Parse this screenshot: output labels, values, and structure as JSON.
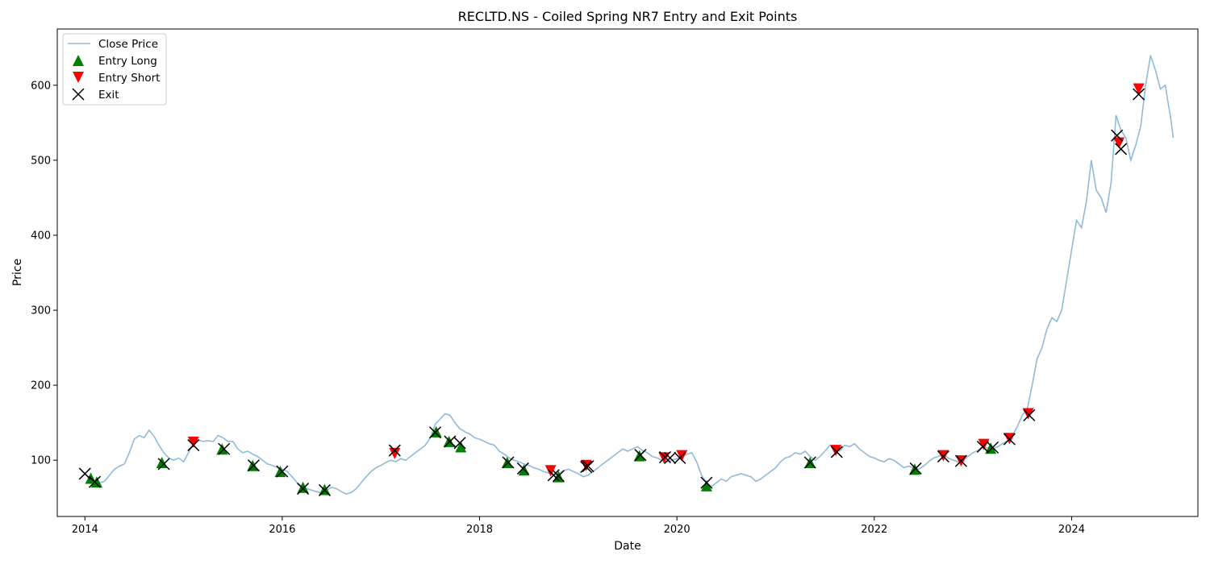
{
  "chart_data": {
    "type": "line",
    "title": "RECLTD.NS - Coiled Spring NR7 Entry and Exit Points",
    "xlabel": "Date",
    "ylabel": "Price",
    "xlim": [
      2013.72,
      2025.28
    ],
    "ylim": [
      25,
      675
    ],
    "x_ticks": [
      2014,
      2016,
      2018,
      2020,
      2022,
      2024
    ],
    "x_tick_labels": [
      "2014",
      "2016",
      "2018",
      "2020",
      "2022",
      "2024"
    ],
    "y_ticks": [
      100,
      200,
      300,
      400,
      500,
      600
    ],
    "y_tick_labels": [
      "100",
      "200",
      "300",
      "400",
      "500",
      "600"
    ],
    "grid": false,
    "legend_position": "top-left",
    "colors": {
      "close": "#1f77b4",
      "entry_long": "#008000",
      "entry_short": "#ff0000",
      "exit": "#000000"
    },
    "series": [
      {
        "name": "Close Price",
        "marker": "line",
        "points": [
          [
            2014.0,
            82
          ],
          [
            2014.05,
            76
          ],
          [
            2014.1,
            72
          ],
          [
            2014.15,
            70
          ],
          [
            2014.2,
            72
          ],
          [
            2014.25,
            80
          ],
          [
            2014.3,
            88
          ],
          [
            2014.35,
            92
          ],
          [
            2014.4,
            95
          ],
          [
            2014.45,
            110
          ],
          [
            2014.5,
            128
          ],
          [
            2014.55,
            133
          ],
          [
            2014.6,
            130
          ],
          [
            2014.65,
            140
          ],
          [
            2014.7,
            132
          ],
          [
            2014.75,
            120
          ],
          [
            2014.8,
            110
          ],
          [
            2014.85,
            103
          ],
          [
            2014.9,
            100
          ],
          [
            2014.95,
            103
          ],
          [
            2015.0,
            98
          ],
          [
            2015.05,
            110
          ],
          [
            2015.1,
            122
          ],
          [
            2015.15,
            127
          ],
          [
            2015.2,
            125
          ],
          [
            2015.25,
            126
          ],
          [
            2015.3,
            125
          ],
          [
            2015.35,
            133
          ],
          [
            2015.4,
            130
          ],
          [
            2015.45,
            125
          ],
          [
            2015.5,
            125
          ],
          [
            2015.55,
            115
          ],
          [
            2015.6,
            110
          ],
          [
            2015.65,
            112
          ],
          [
            2015.7,
            108
          ],
          [
            2015.75,
            105
          ],
          [
            2015.8,
            100
          ],
          [
            2015.85,
            95
          ],
          [
            2015.9,
            93
          ],
          [
            2015.95,
            90
          ],
          [
            2016.0,
            88
          ],
          [
            2016.05,
            85
          ],
          [
            2016.1,
            78
          ],
          [
            2016.15,
            70
          ],
          [
            2016.2,
            65
          ],
          [
            2016.25,
            62
          ],
          [
            2016.3,
            60
          ],
          [
            2016.35,
            58
          ],
          [
            2016.4,
            56
          ],
          [
            2016.45,
            60
          ],
          [
            2016.5,
            64
          ],
          [
            2016.55,
            62
          ],
          [
            2016.6,
            58
          ],
          [
            2016.65,
            55
          ],
          [
            2016.7,
            57
          ],
          [
            2016.75,
            62
          ],
          [
            2016.8,
            70
          ],
          [
            2016.85,
            78
          ],
          [
            2016.9,
            85
          ],
          [
            2016.95,
            90
          ],
          [
            2017.0,
            93
          ],
          [
            2017.05,
            97
          ],
          [
            2017.1,
            100
          ],
          [
            2017.15,
            98
          ],
          [
            2017.2,
            102
          ],
          [
            2017.25,
            100
          ],
          [
            2017.3,
            105
          ],
          [
            2017.35,
            110
          ],
          [
            2017.4,
            115
          ],
          [
            2017.45,
            120
          ],
          [
            2017.5,
            130
          ],
          [
            2017.55,
            148
          ],
          [
            2017.6,
            155
          ],
          [
            2017.65,
            162
          ],
          [
            2017.7,
            160
          ],
          [
            2017.75,
            150
          ],
          [
            2017.8,
            142
          ],
          [
            2017.85,
            138
          ],
          [
            2017.9,
            135
          ],
          [
            2017.95,
            130
          ],
          [
            2018.0,
            128
          ],
          [
            2018.05,
            125
          ],
          [
            2018.1,
            122
          ],
          [
            2018.15,
            120
          ],
          [
            2018.2,
            112
          ],
          [
            2018.25,
            108
          ],
          [
            2018.3,
            103
          ],
          [
            2018.35,
            100
          ],
          [
            2018.4,
            98
          ],
          [
            2018.45,
            95
          ],
          [
            2018.5,
            93
          ],
          [
            2018.55,
            90
          ],
          [
            2018.6,
            88
          ],
          [
            2018.65,
            85
          ],
          [
            2018.7,
            83
          ],
          [
            2018.75,
            80
          ],
          [
            2018.8,
            82
          ],
          [
            2018.85,
            86
          ],
          [
            2018.9,
            88
          ],
          [
            2018.95,
            85
          ],
          [
            2019.0,
            82
          ],
          [
            2019.05,
            78
          ],
          [
            2019.1,
            80
          ],
          [
            2019.15,
            85
          ],
          [
            2019.2,
            90
          ],
          [
            2019.25,
            95
          ],
          [
            2019.3,
            100
          ],
          [
            2019.35,
            105
          ],
          [
            2019.4,
            110
          ],
          [
            2019.45,
            115
          ],
          [
            2019.5,
            112
          ],
          [
            2019.55,
            115
          ],
          [
            2019.6,
            118
          ],
          [
            2019.65,
            113
          ],
          [
            2019.7,
            110
          ],
          [
            2019.75,
            105
          ],
          [
            2019.8,
            103
          ],
          [
            2019.85,
            100
          ],
          [
            2019.9,
            98
          ],
          [
            2019.95,
            100
          ],
          [
            2020.0,
            102
          ],
          [
            2020.05,
            105
          ],
          [
            2020.1,
            108
          ],
          [
            2020.15,
            110
          ],
          [
            2020.2,
            98
          ],
          [
            2020.25,
            80
          ],
          [
            2020.3,
            70
          ],
          [
            2020.35,
            65
          ],
          [
            2020.4,
            70
          ],
          [
            2020.45,
            75
          ],
          [
            2020.5,
            72
          ],
          [
            2020.55,
            78
          ],
          [
            2020.6,
            80
          ],
          [
            2020.65,
            82
          ],
          [
            2020.7,
            80
          ],
          [
            2020.75,
            78
          ],
          [
            2020.8,
            72
          ],
          [
            2020.85,
            75
          ],
          [
            2020.9,
            80
          ],
          [
            2020.95,
            85
          ],
          [
            2021.0,
            90
          ],
          [
            2021.05,
            98
          ],
          [
            2021.1,
            103
          ],
          [
            2021.15,
            105
          ],
          [
            2021.2,
            110
          ],
          [
            2021.25,
            108
          ],
          [
            2021.3,
            112
          ],
          [
            2021.35,
            105
          ],
          [
            2021.4,
            100
          ],
          [
            2021.45,
            105
          ],
          [
            2021.5,
            112
          ],
          [
            2021.55,
            120
          ],
          [
            2021.6,
            118
          ],
          [
            2021.65,
            112
          ],
          [
            2021.7,
            120
          ],
          [
            2021.75,
            118
          ],
          [
            2021.8,
            122
          ],
          [
            2021.85,
            115
          ],
          [
            2021.9,
            110
          ],
          [
            2021.95,
            105
          ],
          [
            2022.0,
            103
          ],
          [
            2022.05,
            100
          ],
          [
            2022.1,
            98
          ],
          [
            2022.15,
            102
          ],
          [
            2022.2,
            100
          ],
          [
            2022.25,
            95
          ],
          [
            2022.3,
            90
          ],
          [
            2022.35,
            92
          ],
          [
            2022.4,
            90
          ],
          [
            2022.45,
            88
          ],
          [
            2022.5,
            92
          ],
          [
            2022.55,
            98
          ],
          [
            2022.6,
            103
          ],
          [
            2022.65,
            105
          ],
          [
            2022.7,
            108
          ],
          [
            2022.75,
            103
          ],
          [
            2022.8,
            100
          ],
          [
            2022.85,
            98
          ],
          [
            2022.9,
            100
          ],
          [
            2022.95,
            105
          ],
          [
            2023.0,
            110
          ],
          [
            2023.05,
            113
          ],
          [
            2023.1,
            118
          ],
          [
            2023.15,
            116
          ],
          [
            2023.2,
            115
          ],
          [
            2023.25,
            118
          ],
          [
            2023.3,
            122
          ],
          [
            2023.35,
            126
          ],
          [
            2023.4,
            132
          ],
          [
            2023.45,
            145
          ],
          [
            2023.5,
            160
          ],
          [
            2023.55,
            168
          ],
          [
            2023.6,
            200
          ],
          [
            2023.65,
            235
          ],
          [
            2023.7,
            250
          ],
          [
            2023.75,
            275
          ],
          [
            2023.8,
            290
          ],
          [
            2023.85,
            285
          ],
          [
            2023.9,
            300
          ],
          [
            2023.95,
            340
          ],
          [
            2024.0,
            380
          ],
          [
            2024.05,
            420
          ],
          [
            2024.1,
            410
          ],
          [
            2024.15,
            445
          ],
          [
            2024.2,
            500
          ],
          [
            2024.25,
            460
          ],
          [
            2024.3,
            450
          ],
          [
            2024.35,
            430
          ],
          [
            2024.4,
            470
          ],
          [
            2024.45,
            560
          ],
          [
            2024.5,
            540
          ],
          [
            2024.55,
            530
          ],
          [
            2024.6,
            500
          ],
          [
            2024.65,
            520
          ],
          [
            2024.7,
            545
          ],
          [
            2024.75,
            600
          ],
          [
            2024.8,
            640
          ],
          [
            2024.85,
            620
          ],
          [
            2024.9,
            595
          ],
          [
            2024.95,
            600
          ],
          [
            2024.98,
            575
          ],
          [
            2025.0,
            560
          ],
          [
            2025.03,
            530
          ]
        ]
      },
      {
        "name": "Entry Long",
        "marker": "triangle-up",
        "points": [
          [
            2014.06,
            76
          ],
          [
            2014.12,
            71
          ],
          [
            2014.78,
            97
          ],
          [
            2015.39,
            115
          ],
          [
            2015.7,
            93
          ],
          [
            2015.98,
            85
          ],
          [
            2016.21,
            64
          ],
          [
            2016.43,
            61
          ],
          [
            2017.56,
            138
          ],
          [
            2017.69,
            125
          ],
          [
            2017.81,
            118
          ],
          [
            2018.28,
            97
          ],
          [
            2018.45,
            87
          ],
          [
            2018.8,
            78
          ],
          [
            2019.62,
            106
          ],
          [
            2020.3,
            66
          ],
          [
            2021.35,
            97
          ],
          [
            2022.41,
            88
          ],
          [
            2023.18,
            116
          ]
        ]
      },
      {
        "name": "Entry Short",
        "marker": "triangle-down",
        "points": [
          [
            2015.1,
            124
          ],
          [
            2017.14,
            109
          ],
          [
            2018.72,
            86
          ],
          [
            2019.08,
            93
          ],
          [
            2019.87,
            103
          ],
          [
            2020.05,
            106
          ],
          [
            2021.61,
            113
          ],
          [
            2022.7,
            106
          ],
          [
            2022.88,
            99
          ],
          [
            2023.11,
            121
          ],
          [
            2023.37,
            129
          ],
          [
            2023.56,
            162
          ],
          [
            2024.48,
            523
          ],
          [
            2024.68,
            595
          ]
        ]
      },
      {
        "name": "Exit",
        "marker": "x",
        "points": [
          [
            2014.0,
            82
          ],
          [
            2014.1,
            71
          ],
          [
            2014.8,
            95
          ],
          [
            2015.1,
            120
          ],
          [
            2015.41,
            115
          ],
          [
            2015.71,
            93
          ],
          [
            2016.0,
            85
          ],
          [
            2016.21,
            62
          ],
          [
            2016.43,
            60
          ],
          [
            2017.14,
            113
          ],
          [
            2017.55,
            137
          ],
          [
            2017.7,
            125
          ],
          [
            2017.8,
            123
          ],
          [
            2018.29,
            97
          ],
          [
            2018.44,
            89
          ],
          [
            2018.75,
            80
          ],
          [
            2018.8,
            79
          ],
          [
            2019.08,
            91
          ],
          [
            2019.1,
            92
          ],
          [
            2019.63,
            107
          ],
          [
            2019.88,
            104
          ],
          [
            2019.93,
            103
          ],
          [
            2020.03,
            103
          ],
          [
            2020.3,
            70
          ],
          [
            2021.35,
            97
          ],
          [
            2021.62,
            111
          ],
          [
            2022.42,
            89
          ],
          [
            2022.7,
            105
          ],
          [
            2022.88,
            99
          ],
          [
            2023.1,
            118
          ],
          [
            2023.2,
            117
          ],
          [
            2023.37,
            128
          ],
          [
            2023.57,
            160
          ],
          [
            2024.46,
            533
          ],
          [
            2024.5,
            515
          ],
          [
            2024.68,
            588
          ]
        ]
      }
    ]
  }
}
